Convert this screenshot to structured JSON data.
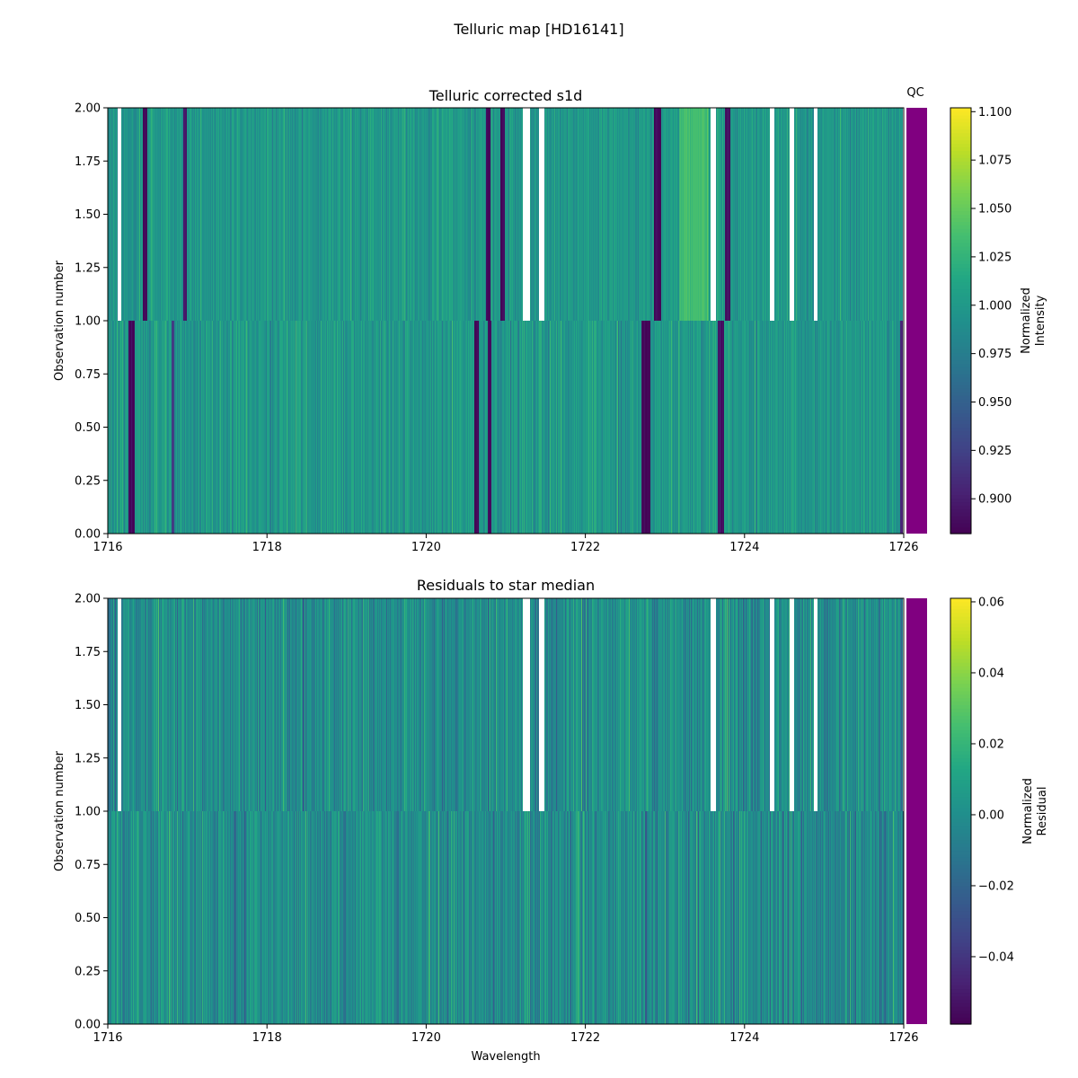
{
  "suptitle": "Telluric map [HD16141]",
  "colors": {
    "qc": "#800080",
    "gap": "#ffffff",
    "frame": "#000000"
  },
  "chart_data": [
    {
      "type": "heatmap",
      "title": "Telluric corrected s1d",
      "xlabel": "",
      "ylabel": "Observation number",
      "xlim": [
        1716,
        1726
      ],
      "ylim": [
        0,
        2
      ],
      "xticks": [
        "1716",
        "1718",
        "1720",
        "1722",
        "1724",
        "1726"
      ],
      "yticks": [
        "0.00",
        "0.25",
        "0.50",
        "0.75",
        "1.00",
        "1.25",
        "1.50",
        "1.75",
        "2.00"
      ],
      "colormap": "viridis",
      "colorbar": {
        "label_lines": [
          "Normalized",
          "Intensity"
        ],
        "range": [
          0.882,
          1.102
        ],
        "ticks": [
          "0.900",
          "0.925",
          "0.950",
          "0.975",
          "1.000",
          "1.025",
          "1.050",
          "1.075",
          "1.100"
        ]
      },
      "qc_label": "QC",
      "rows": [
        {
          "observation_range": [
            0,
            1
          ],
          "mean": 1.0,
          "noise": 0.012,
          "absorption_lines": [
            {
              "center": 1716.3,
              "width": 0.07,
              "value": 0.885
            },
            {
              "center": 1716.82,
              "width": 0.04,
              "value": 0.92
            },
            {
              "center": 1720.63,
              "width": 0.06,
              "value": 0.885
            },
            {
              "center": 1720.8,
              "width": 0.05,
              "value": 0.89
            },
            {
              "center": 1722.76,
              "width": 0.11,
              "value": 0.885
            },
            {
              "center": 1723.7,
              "width": 0.08,
              "value": 0.89
            },
            {
              "center": 1725.97,
              "width": 0.04,
              "value": 0.905
            }
          ],
          "gaps": [
            [
              1726.0,
              1726.0
            ]
          ]
        },
        {
          "observation_range": [
            1,
            2
          ],
          "mean": 1.0,
          "noise": 0.01,
          "absorption_lines": [
            {
              "center": 1716.47,
              "width": 0.06,
              "value": 0.885
            },
            {
              "center": 1716.97,
              "width": 0.04,
              "value": 0.9
            },
            {
              "center": 1720.78,
              "width": 0.06,
              "value": 0.885
            },
            {
              "center": 1720.96,
              "width": 0.05,
              "value": 0.885
            },
            {
              "center": 1722.91,
              "width": 0.09,
              "value": 0.885
            },
            {
              "center": 1723.79,
              "width": 0.07,
              "value": 0.89
            }
          ],
          "bright_bands": [
            [
              1723.18,
              1723.55,
              1.035
            ]
          ],
          "gaps": [
            [
              1716.12,
              1716.17
            ],
            [
              1721.22,
              1721.3
            ],
            [
              1721.42,
              1721.48
            ],
            [
              1723.57,
              1723.64
            ],
            [
              1724.32,
              1724.37
            ],
            [
              1724.57,
              1724.62
            ],
            [
              1724.87,
              1724.92
            ],
            [
              1726.0,
              1726.0
            ]
          ]
        }
      ]
    },
    {
      "type": "heatmap",
      "title": "Residuals to star median",
      "xlabel": "Wavelength",
      "ylabel": "Observation number",
      "xlim": [
        1716,
        1726
      ],
      "ylim": [
        0,
        2
      ],
      "xticks": [
        "1716",
        "1718",
        "1720",
        "1722",
        "1724",
        "1726"
      ],
      "yticks": [
        "0.00",
        "0.25",
        "0.50",
        "0.75",
        "1.00",
        "1.25",
        "1.50",
        "1.75",
        "2.00"
      ],
      "colormap": "viridis",
      "colorbar": {
        "label_lines": [
          "Normalized",
          "Residual"
        ],
        "range": [
          -0.059,
          0.061
        ],
        "ticks": [
          "−0.04",
          "−0.02",
          "0.00",
          "0.02",
          "0.04",
          "0.06"
        ]
      },
      "rows": [
        {
          "observation_range": [
            0,
            1
          ],
          "mean": 0.0,
          "noise": 0.009,
          "gaps": []
        },
        {
          "observation_range": [
            1,
            2
          ],
          "mean": 0.0,
          "noise": 0.009,
          "gaps": [
            [
              1716.12,
              1716.17
            ],
            [
              1721.22,
              1721.3
            ],
            [
              1721.42,
              1721.48
            ],
            [
              1723.57,
              1723.64
            ],
            [
              1724.32,
              1724.37
            ],
            [
              1724.57,
              1724.62
            ],
            [
              1724.87,
              1724.92
            ],
            [
              1726.0,
              1726.0
            ]
          ]
        }
      ]
    }
  ]
}
